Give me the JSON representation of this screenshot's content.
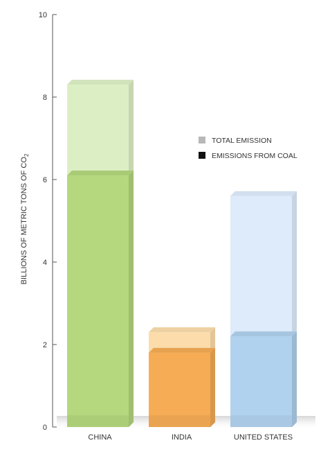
{
  "chart_data": {
    "type": "bar",
    "categories": [
      "CHINA",
      "INDIA",
      "UNITED STATES"
    ],
    "series": [
      {
        "name": "TOTAL EMISSION",
        "values": [
          8.3,
          2.3,
          5.6
        ]
      },
      {
        "name": "EMISSIONS FROM COAL",
        "values": [
          6.1,
          1.8,
          2.2
        ]
      }
    ],
    "ylabel": "BILLIONS OF METRIC TONS OF CO",
    "ylabel_subscript": "2",
    "ylim": [
      0,
      10
    ],
    "yticks": [
      "0",
      "2",
      "4",
      "6",
      "8",
      "10"
    ],
    "grid": false,
    "legend_position": "right",
    "colors": {
      "total": [
        "#dcefc4",
        "#fbdcaa",
        "#ddebfa"
      ],
      "coal": [
        "#b5d87e",
        "#f6ac55",
        "#b1d2ef"
      ],
      "legend_total": "#b8b8b8",
      "legend_coal": "#111111"
    }
  }
}
